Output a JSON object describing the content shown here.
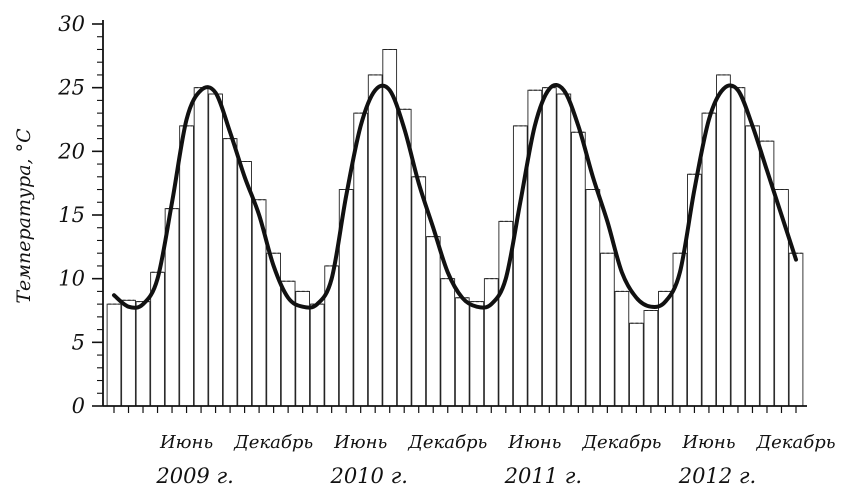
{
  "chart_data": {
    "type": "bar",
    "ylabel": "Температура, °С",
    "xlabel": "",
    "ylim": [
      0,
      30
    ],
    "yticks": [
      0,
      5,
      10,
      15,
      20,
      25,
      30
    ],
    "grid": false,
    "x_ticks": [
      {
        "label": "Июнь",
        "month_index": 5
      },
      {
        "label": "Декабрь",
        "month_index": 11
      },
      {
        "label": "Июнь",
        "month_index": 17
      },
      {
        "label": "Декабрь",
        "month_index": 23
      },
      {
        "label": "Июнь",
        "month_index": 29
      },
      {
        "label": "Декабрь",
        "month_index": 35
      },
      {
        "label": "Июнь",
        "month_index": 41
      },
      {
        "label": "Декабрь",
        "month_index": 47
      }
    ],
    "year_labels": [
      {
        "label": "2009 г.",
        "month_index": 6
      },
      {
        "label": "2010 г.",
        "month_index": 18
      },
      {
        "label": "2011 г.",
        "month_index": 30
      },
      {
        "label": "2012 г.",
        "month_index": 42
      }
    ],
    "series": [
      {
        "type": "bar",
        "values": [
          8.0,
          8.3,
          8.2,
          10.5,
          15.5,
          22.0,
          25.0,
          24.5,
          21.0,
          19.2,
          16.2,
          12.0,
          9.8,
          9.0,
          8.0,
          11.0,
          17.0,
          23.0,
          26.0,
          28.0,
          23.3,
          18.0,
          13.3,
          10.0,
          8.5,
          8.2,
          10.0,
          14.5,
          22.0,
          24.8,
          25.0,
          24.5,
          21.5,
          17.0,
          12.0,
          9.0,
          6.5,
          7.5,
          9.0,
          12.0,
          18.2,
          23.0,
          26.0,
          25.0,
          22.0,
          20.8,
          17.0,
          12.0
        ]
      },
      {
        "type": "line",
        "values": [
          8.7,
          7.8,
          8.0,
          10.0,
          16.0,
          22.5,
          24.8,
          24.6,
          21.5,
          18.0,
          15.0,
          11.0,
          8.5,
          7.8,
          8.0,
          10.0,
          16.5,
          22.0,
          24.8,
          24.8,
          21.8,
          17.5,
          14.0,
          10.5,
          8.5,
          7.8,
          8.0,
          10.0,
          16.0,
          22.0,
          24.9,
          24.8,
          22.0,
          18.0,
          14.5,
          10.5,
          8.5,
          7.8,
          8.2,
          10.5,
          17.0,
          22.5,
          24.9,
          24.8,
          22.0,
          18.5,
          15.0,
          11.5
        ]
      }
    ]
  }
}
